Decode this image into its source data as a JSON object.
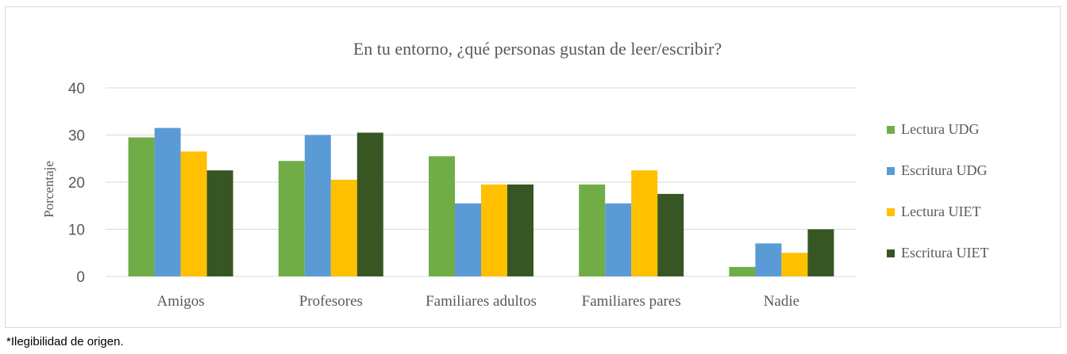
{
  "chart_data": {
    "type": "bar",
    "title": "En tu entorno, ¿qué personas gustan de leer/escribir?",
    "xlabel": "",
    "ylabel": "Porcentaje",
    "ylim": [
      0,
      40
    ],
    "yticks": [
      0,
      10,
      20,
      30,
      40
    ],
    "grid": true,
    "legend_position": "right",
    "categories": [
      "Amigos",
      "Profesores",
      "Familiares adultos",
      "Familiares pares",
      "Nadie"
    ],
    "series": [
      {
        "name": "Lectura UDG",
        "color": "#70ad47",
        "values": [
          29.5,
          24.5,
          25.5,
          19.5,
          2
        ]
      },
      {
        "name": "Escritura UDG",
        "color": "#5b9bd5",
        "values": [
          31.5,
          30,
          15.5,
          15.5,
          7
        ]
      },
      {
        "name": "Lectura UIET",
        "color": "#ffc000",
        "values": [
          26.5,
          20.5,
          19.5,
          22.5,
          5
        ]
      },
      {
        "name": "Escritura UIET",
        "color": "#375623",
        "values": [
          22.5,
          30.5,
          19.5,
          17.5,
          10
        ]
      }
    ]
  },
  "footnote": "*Ilegibilidad de origen."
}
